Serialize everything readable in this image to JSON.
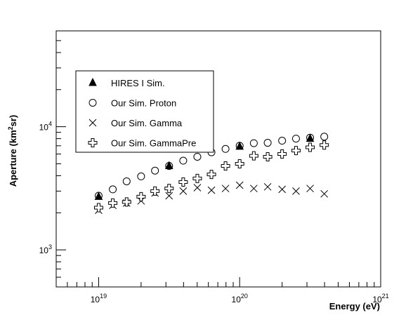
{
  "chart_data": {
    "type": "scatter",
    "title": "",
    "xlabel": "Energy (eV)",
    "ylabel_parts": {
      "a": "Aperture (km",
      "sup": "2",
      "b": "sr)"
    },
    "x_scale": "log",
    "y_scale": "log",
    "xlim": [
      5e+18,
      1e+21
    ],
    "ylim": [
      500,
      60000
    ],
    "x_major_ticks": [
      {
        "value": 1e+19,
        "base": "10",
        "exp": "19"
      },
      {
        "value": 1e+20,
        "base": "10",
        "exp": "20"
      },
      {
        "value": 1e+21,
        "base": "10",
        "exp": "21"
      }
    ],
    "y_major_ticks": [
      {
        "value": 1000,
        "base": "10",
        "exp": "3"
      },
      {
        "value": 10000,
        "base": "10",
        "exp": "4"
      }
    ],
    "grid": false,
    "legend_position": "top-left",
    "series": [
      {
        "name": "HIRES I Sim.",
        "marker": "filled-triangle",
        "x": [
          1e+19,
          3.16e+19,
          1e+20,
          3.16e+20
        ],
        "y": [
          2700,
          4800,
          6900,
          8000
        ]
      },
      {
        "name": "Our Sim. Proton",
        "marker": "open-circle",
        "x": [
          1e+19,
          1.26e+19,
          1.58e+19,
          2e+19,
          2.51e+19,
          3.16e+19,
          3.98e+19,
          5.01e+19,
          6.31e+19,
          7.94e+19,
          1e+20,
          1.26e+20,
          1.58e+20,
          2e+20,
          2.51e+20,
          3.16e+20,
          3.98e+20
        ],
        "y": [
          2750,
          3100,
          3600,
          3950,
          4400,
          4800,
          5300,
          5700,
          6200,
          6600,
          7000,
          7350,
          7400,
          7700,
          8000,
          8150,
          8300
        ]
      },
      {
        "name": "Our Sim. Gamma",
        "marker": "cross",
        "x": [
          1e+19,
          1.26e+19,
          1.58e+19,
          2e+19,
          2.51e+19,
          3.16e+19,
          3.98e+19,
          5.01e+19,
          6.31e+19,
          7.94e+19,
          1e+20,
          1.26e+20,
          1.58e+20,
          2e+20,
          2.51e+20,
          3.16e+20,
          3.98e+20
        ],
        "y": [
          2100,
          2300,
          2400,
          2500,
          2900,
          2750,
          3000,
          3200,
          3050,
          3150,
          3350,
          3150,
          3250,
          3100,
          3000,
          3150,
          2850
        ]
      },
      {
        "name": "Our Sim. GammaPre",
        "marker": "open-plus",
        "x": [
          1e+19,
          1.26e+19,
          1.58e+19,
          2e+19,
          2.51e+19,
          3.16e+19,
          3.98e+19,
          5.01e+19,
          6.31e+19,
          7.94e+19,
          1e+20,
          1.26e+20,
          1.58e+20,
          2e+20,
          2.51e+20,
          3.16e+20,
          3.98e+20
        ],
        "y": [
          2200,
          2400,
          2450,
          2700,
          3000,
          3150,
          3550,
          3800,
          4100,
          4800,
          5000,
          5800,
          5700,
          6000,
          6400,
          6800,
          7100
        ]
      }
    ]
  }
}
